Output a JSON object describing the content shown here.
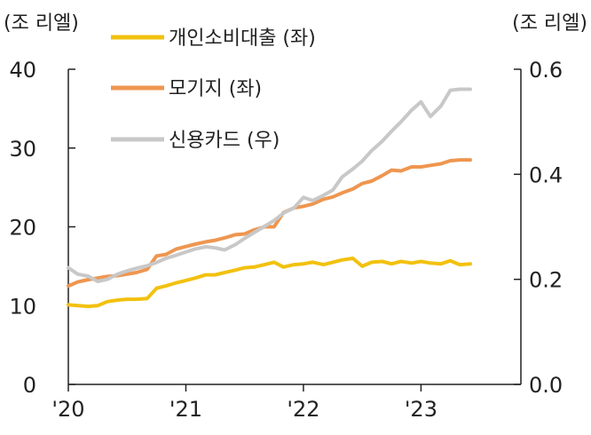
{
  "chart_data": {
    "type": "line",
    "title": "",
    "left_axis": {
      "unit_label": "(조 리엘)",
      "range": [
        0,
        40
      ],
      "ticks": [
        "0",
        "10",
        "20",
        "30",
        "40"
      ]
    },
    "right_axis": {
      "unit_label": "(조 리엘)",
      "range": [
        0.0,
        0.6
      ],
      "ticks": [
        "0.0",
        "0.2",
        "0.4",
        "0.6"
      ]
    },
    "x_axis": {
      "range": [
        2020.0,
        2023.85
      ],
      "ticks": [
        {
          "value": 2020,
          "label": "'20"
        },
        {
          "value": 2021,
          "label": "'21"
        },
        {
          "value": 2022,
          "label": "'22"
        },
        {
          "value": 2023,
          "label": "'23"
        }
      ]
    },
    "grid": false,
    "legend_position": "top-left",
    "series": [
      {
        "name": "개인소비대출 (좌)",
        "axis": "left",
        "color": "#F2C10F",
        "x": [
          2020.0,
          2020.08,
          2020.17,
          2020.25,
          2020.33,
          2020.42,
          2020.5,
          2020.58,
          2020.67,
          2020.75,
          2020.83,
          2020.92,
          2021.0,
          2021.08,
          2021.17,
          2021.25,
          2021.33,
          2021.42,
          2021.5,
          2021.58,
          2021.67,
          2021.75,
          2021.83,
          2021.92,
          2022.0,
          2022.08,
          2022.17,
          2022.25,
          2022.33,
          2022.42,
          2022.5,
          2022.58,
          2022.67,
          2022.75,
          2022.83,
          2022.92,
          2023.0,
          2023.08,
          2023.17,
          2023.25,
          2023.33,
          2023.42
        ],
        "values": [
          10.1,
          10.0,
          9.9,
          10.0,
          10.5,
          10.7,
          10.8,
          10.8,
          10.9,
          12.2,
          12.5,
          12.9,
          13.2,
          13.5,
          13.9,
          13.9,
          14.2,
          14.5,
          14.8,
          14.9,
          15.2,
          15.5,
          14.9,
          15.2,
          15.3,
          15.5,
          15.2,
          15.5,
          15.8,
          16.0,
          15.0,
          15.5,
          15.6,
          15.3,
          15.6,
          15.4,
          15.6,
          15.4,
          15.3,
          15.7,
          15.2,
          15.3
        ]
      },
      {
        "name": "모기지 (좌)",
        "axis": "left",
        "color": "#EE9650",
        "x": [
          2020.0,
          2020.08,
          2020.17,
          2020.25,
          2020.33,
          2020.42,
          2020.5,
          2020.58,
          2020.67,
          2020.75,
          2020.83,
          2020.92,
          2021.0,
          2021.08,
          2021.17,
          2021.25,
          2021.33,
          2021.42,
          2021.5,
          2021.58,
          2021.67,
          2021.75,
          2021.83,
          2021.92,
          2022.0,
          2022.08,
          2022.17,
          2022.25,
          2022.33,
          2022.42,
          2022.5,
          2022.58,
          2022.67,
          2022.75,
          2022.83,
          2022.92,
          2023.0,
          2023.08,
          2023.17,
          2023.25,
          2023.33,
          2023.42
        ],
        "values": [
          12.5,
          13.0,
          13.3,
          13.5,
          13.7,
          13.8,
          14.0,
          14.2,
          14.6,
          16.3,
          16.5,
          17.2,
          17.5,
          17.8,
          18.1,
          18.3,
          18.6,
          19.0,
          19.1,
          19.6,
          20.0,
          20.0,
          21.8,
          22.4,
          22.6,
          22.9,
          23.5,
          23.8,
          24.3,
          24.8,
          25.5,
          25.8,
          26.5,
          27.2,
          27.1,
          27.6,
          27.6,
          27.8,
          28.0,
          28.4,
          28.5,
          28.5
        ]
      },
      {
        "name": "신용카드 (우)",
        "axis": "right",
        "color": "#C8C8C8",
        "x": [
          2020.0,
          2020.08,
          2020.17,
          2020.25,
          2020.33,
          2020.42,
          2020.5,
          2020.58,
          2020.67,
          2020.75,
          2020.83,
          2020.92,
          2021.0,
          2021.08,
          2021.17,
          2021.25,
          2021.33,
          2021.42,
          2021.5,
          2021.58,
          2021.67,
          2021.75,
          2021.83,
          2021.92,
          2022.0,
          2022.08,
          2022.17,
          2022.25,
          2022.33,
          2022.42,
          2022.5,
          2022.58,
          2022.67,
          2022.75,
          2022.83,
          2022.92,
          2023.0,
          2023.08,
          2023.17,
          2023.25,
          2023.33,
          2023.42
        ],
        "values": [
          0.222,
          0.21,
          0.206,
          0.196,
          0.2,
          0.21,
          0.216,
          0.221,
          0.226,
          0.232,
          0.24,
          0.246,
          0.252,
          0.258,
          0.262,
          0.26,
          0.256,
          0.266,
          0.278,
          0.289,
          0.301,
          0.312,
          0.326,
          0.336,
          0.356,
          0.35,
          0.36,
          0.37,
          0.395,
          0.41,
          0.425,
          0.445,
          0.463,
          0.482,
          0.5,
          0.522,
          0.538,
          0.51,
          0.53,
          0.56,
          0.562,
          0.562
        ]
      }
    ]
  }
}
